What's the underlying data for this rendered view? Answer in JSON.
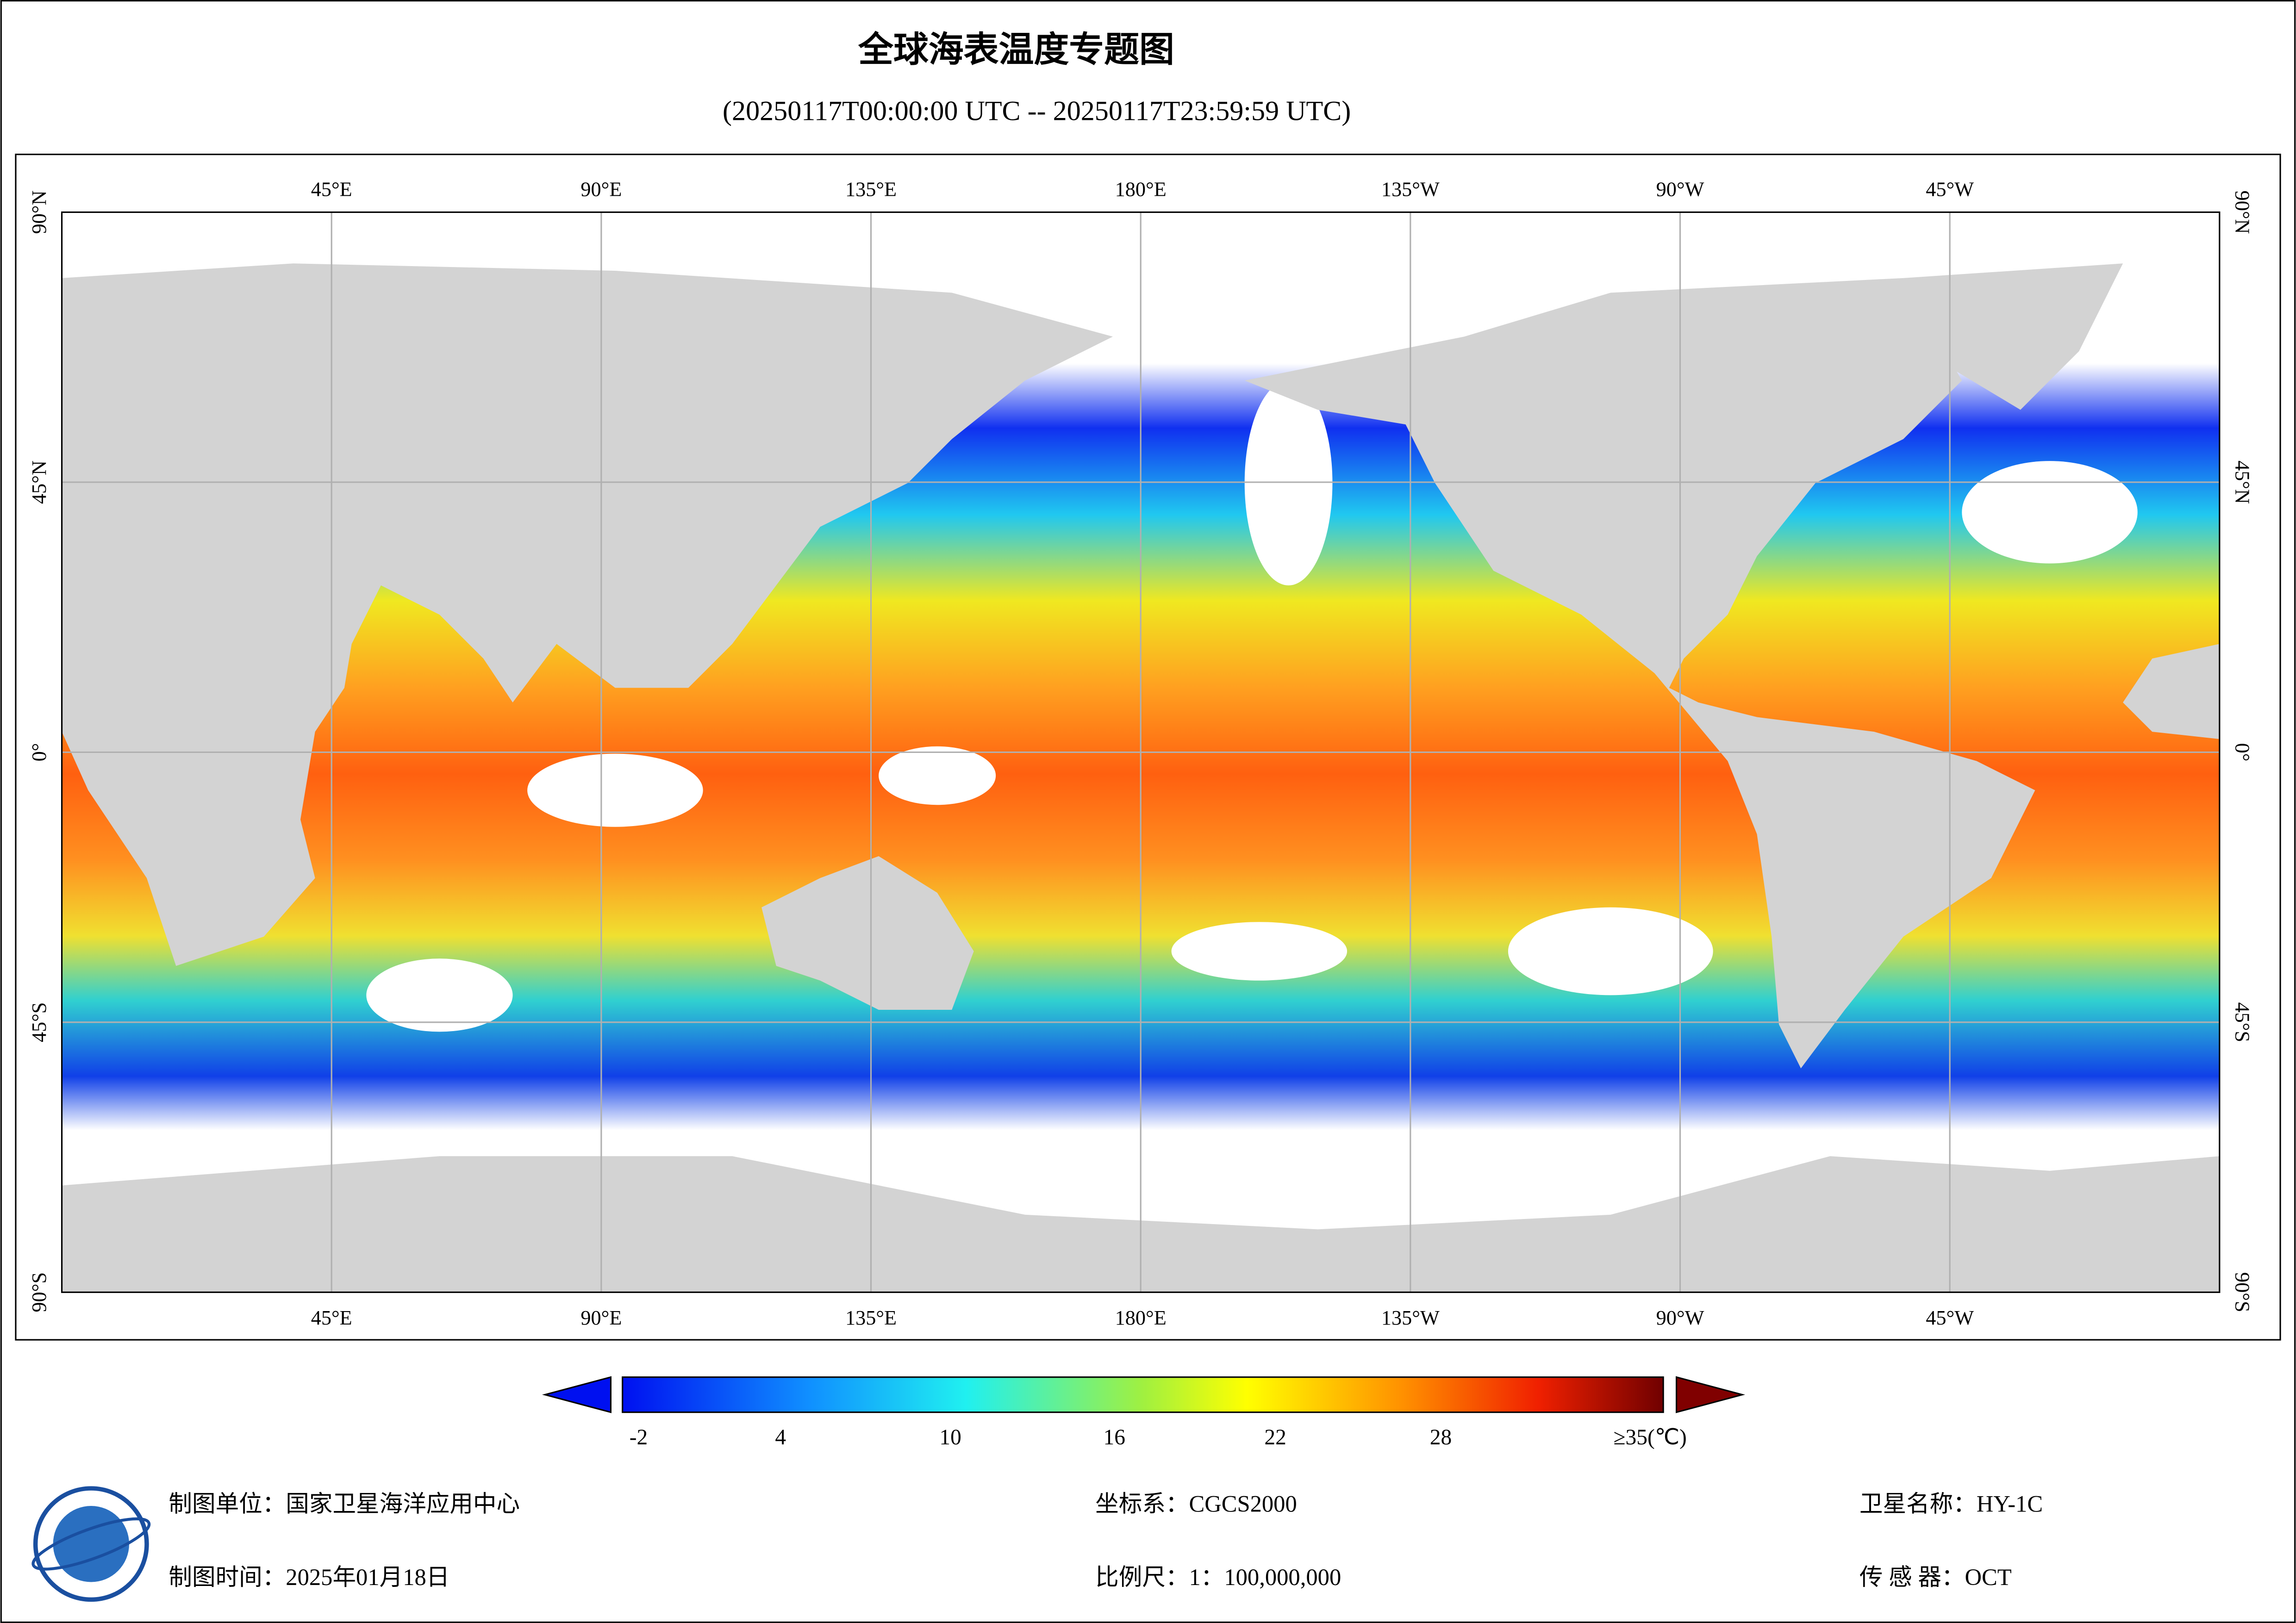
{
  "header": {
    "title": "全球海表温度专题图",
    "subtitle": "(20250117T00:00:00 UTC -- 20250117T23:59:59 UTC)"
  },
  "map": {
    "lon_labels": [
      "45°E",
      "90°E",
      "135°E",
      "180°E",
      "135°W",
      "90°W",
      "45°W"
    ],
    "lat_labels": [
      "90°N",
      "45°N",
      "0°",
      "45°S",
      "90°S"
    ]
  },
  "colorbar": {
    "labels": [
      "-2",
      "4",
      "10",
      "16",
      "22",
      "28",
      "≥35(℃)"
    ]
  },
  "footer": {
    "unit": "制图单位：国家卫星海洋应用中心",
    "date": "制图时间：2025年01月18日",
    "crs": "坐标系：CGCS2000",
    "scale": "比例尺：1：100,000,000",
    "satellite": "卫星名称：HY-1C",
    "sensor": "传 感 器：OCT"
  }
}
